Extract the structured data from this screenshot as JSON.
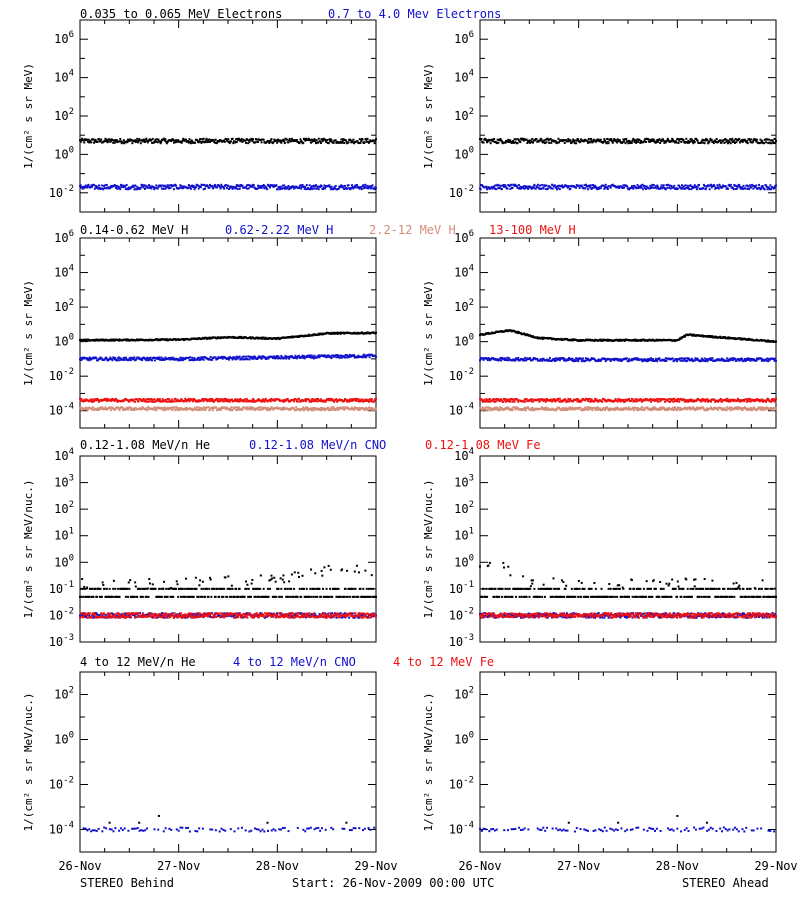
{
  "colors": {
    "black": "#000000",
    "blue": "#1111cc",
    "salmon": "#d28c78",
    "red": "#ee1111"
  },
  "rows": [
    {
      "id": "electrons",
      "ylabel": "1/(cm² s sr MeV)",
      "legend": [
        {
          "text": "0.035 to 0.065 MeV Electrons",
          "color": "black"
        },
        {
          "text": "0.7 to 4.0 Mev Electrons",
          "color": "blue"
        }
      ]
    },
    {
      "id": "protons",
      "ylabel": "1/(cm² s sr MeV)",
      "legend": [
        {
          "text": "0.14-0.62 MeV H",
          "color": "black"
        },
        {
          "text": "0.62-2.22 MeV H",
          "color": "blue"
        },
        {
          "text": "2.2-12 MeV H",
          "color": "salmon"
        },
        {
          "text": "13-100 MeV H",
          "color": "red"
        }
      ]
    },
    {
      "id": "heavy_low",
      "ylabel": "1/(cm² s sr MeV/nuc.)",
      "legend": [
        {
          "text": "0.12-1.08 MeV/n He",
          "color": "black"
        },
        {
          "text": "0.12-1.08 MeV/n CNO",
          "color": "blue"
        },
        {
          "text": "0.12-1.08 MeV Fe",
          "color": "red"
        }
      ]
    },
    {
      "id": "heavy_high",
      "ylabel": "1/(cm² s sr MeV/nuc.)",
      "legend": [
        {
          "text": "4 to 12 MeV/n He",
          "color": "black"
        },
        {
          "text": "4 to 12 MeV/n CNO",
          "color": "blue"
        },
        {
          "text": "4 to 12 MeV Fe",
          "color": "red"
        }
      ]
    }
  ],
  "x_ticks": [
    "26-Nov",
    "27-Nov",
    "28-Nov",
    "29-Nov"
  ],
  "footer": {
    "left": "STEREO Behind",
    "center": "Start: 26-Nov-2009 00:00 UTC",
    "right": "STEREO Ahead"
  },
  "chart_data": [
    {
      "type": "scatter",
      "spacecraft": "STEREO Behind",
      "row": "electrons",
      "log_y": true,
      "x_unit": "days since 26-Nov-2009 00:00 UTC",
      "xlim": [
        0,
        3
      ],
      "ylim_exp": [
        -3,
        7
      ],
      "y_ticks_exp": [
        -2,
        0,
        2,
        4,
        6
      ],
      "series": [
        {
          "name": "0.035 to 0.065 MeV Electrons",
          "color": "black",
          "y": [
            5,
            5,
            5,
            5
          ],
          "x": [
            0,
            1,
            2,
            3
          ]
        },
        {
          "name": "0.7 to 4.0 Mev Electrons",
          "color": "blue",
          "y": [
            0.02,
            0.02,
            0.02,
            0.02
          ],
          "x": [
            0,
            1,
            2,
            3
          ]
        }
      ]
    },
    {
      "type": "scatter",
      "spacecraft": "STEREO Ahead",
      "row": "electrons",
      "log_y": true,
      "x_unit": "days since 26-Nov-2009 00:00 UTC",
      "xlim": [
        0,
        3
      ],
      "ylim_exp": [
        -3,
        7
      ],
      "y_ticks_exp": [
        -2,
        0,
        2,
        4,
        6
      ],
      "series": [
        {
          "name": "0.035 to 0.065 MeV Electrons",
          "color": "black",
          "y": [
            5,
            5,
            5,
            5
          ],
          "x": [
            0,
            1,
            2,
            3
          ]
        },
        {
          "name": "0.7 to 4.0 Mev Electrons",
          "color": "blue",
          "y": [
            0.02,
            0.02,
            0.02,
            0.02
          ],
          "x": [
            0,
            1,
            2,
            3
          ]
        }
      ]
    },
    {
      "type": "scatter",
      "spacecraft": "STEREO Behind",
      "row": "protons",
      "log_y": true,
      "x_unit": "days since 26-Nov-2009 00:00 UTC",
      "xlim": [
        0,
        3
      ],
      "ylim_exp": [
        -5,
        6
      ],
      "y_ticks_exp": [
        -4,
        -2,
        0,
        2,
        4,
        6
      ],
      "series": [
        {
          "name": "0.14-0.62 MeV H",
          "color": "black",
          "x": [
            0,
            1,
            1.5,
            2,
            2.5,
            3
          ],
          "y": [
            1.2,
            1.3,
            1.8,
            1.5,
            3.0,
            3.2
          ]
        },
        {
          "name": "0.62-2.22 MeV H",
          "color": "blue",
          "x": [
            0,
            1,
            2,
            3
          ],
          "y": [
            0.1,
            0.1,
            0.12,
            0.15
          ]
        },
        {
          "name": "2.2-12 MeV H",
          "color": "salmon",
          "x": [
            0,
            1,
            2,
            3
          ],
          "y": [
            0.00013,
            0.00013,
            0.00013,
            0.00013
          ]
        },
        {
          "name": "13-100 MeV H",
          "color": "red",
          "x": [
            0,
            1,
            2,
            3
          ],
          "y": [
            0.0004,
            0.0004,
            0.0004,
            0.0004
          ]
        }
      ]
    },
    {
      "type": "scatter",
      "spacecraft": "STEREO Ahead",
      "row": "protons",
      "log_y": true,
      "x_unit": "days since 26-Nov-2009 00:00 UTC",
      "xlim": [
        0,
        3
      ],
      "ylim_exp": [
        -5,
        6
      ],
      "y_ticks_exp": [
        -4,
        -2,
        0,
        2,
        4,
        6
      ],
      "series": [
        {
          "name": "0.14-0.62 MeV H",
          "color": "black",
          "x": [
            0,
            0.3,
            0.6,
            1,
            2,
            2.1,
            3
          ],
          "y": [
            2.5,
            4.5,
            1.6,
            1.2,
            1.2,
            2.5,
            1.0
          ]
        },
        {
          "name": "0.62-2.22 MeV H",
          "color": "blue",
          "x": [
            0,
            1,
            2,
            3
          ],
          "y": [
            0.1,
            0.09,
            0.09,
            0.09
          ]
        },
        {
          "name": "2.2-12 MeV H",
          "color": "salmon",
          "x": [
            0,
            1,
            2,
            3
          ],
          "y": [
            0.00013,
            0.00013,
            0.00013,
            0.00013
          ]
        },
        {
          "name": "13-100 MeV H",
          "color": "red",
          "x": [
            0,
            1,
            2,
            3
          ],
          "y": [
            0.0004,
            0.0004,
            0.0004,
            0.0004
          ]
        }
      ]
    },
    {
      "type": "scatter",
      "spacecraft": "STEREO Behind",
      "row": "heavy_low",
      "log_y": true,
      "x_unit": "days since 26-Nov-2009 00:00 UTC",
      "xlim": [
        0,
        3
      ],
      "ylim_exp": [
        -3,
        4
      ],
      "y_ticks_exp": [
        -3,
        -2,
        -1,
        0,
        1,
        2,
        3,
        4
      ],
      "series": [
        {
          "name": "0.12-1.08 MeV/n He",
          "color": "black",
          "x": [
            0,
            1,
            2,
            2.5,
            3
          ],
          "y": [
            0.1,
            0.1,
            0.15,
            0.3,
            0.3
          ]
        },
        {
          "name": "0.12-1.08 MeV/n CNO",
          "color": "blue",
          "x": [
            0,
            1,
            2,
            3
          ],
          "y": [
            0.01,
            0.01,
            0.01,
            0.01
          ]
        },
        {
          "name": "0.12-1.08 MeV Fe",
          "color": "red",
          "x": [
            0,
            1,
            2,
            3
          ],
          "y": [
            0.01,
            0.01,
            0.01,
            0.01
          ]
        }
      ]
    },
    {
      "type": "scatter",
      "spacecraft": "STEREO Ahead",
      "row": "heavy_low",
      "log_y": true,
      "x_unit": "days since 26-Nov-2009 00:00 UTC",
      "xlim": [
        0,
        3
      ],
      "ylim_exp": [
        -3,
        4
      ],
      "y_ticks_exp": [
        -3,
        -2,
        -1,
        0,
        1,
        2,
        3,
        4
      ],
      "series": [
        {
          "name": "0.12-1.08 MeV/n He",
          "color": "black",
          "x": [
            0,
            0.2,
            0.5,
            1,
            2,
            3
          ],
          "y": [
            0.3,
            0.5,
            0.1,
            0.1,
            0.1,
            0.1
          ]
        },
        {
          "name": "0.12-1.08 MeV/n CNO",
          "color": "blue",
          "x": [
            0,
            1,
            2,
            3
          ],
          "y": [
            0.01,
            0.01,
            0.01,
            0.01
          ]
        },
        {
          "name": "0.12-1.08 MeV Fe",
          "color": "red",
          "x": [
            0,
            1,
            2,
            3
          ],
          "y": [
            0.01,
            0.01,
            0.01,
            0.01
          ]
        }
      ]
    },
    {
      "type": "scatter",
      "spacecraft": "STEREO Behind",
      "row": "heavy_high",
      "log_y": true,
      "x_unit": "days since 26-Nov-2009 00:00 UTC",
      "xlim": [
        0,
        3
      ],
      "ylim_exp": [
        -5,
        3
      ],
      "y_ticks_exp": [
        -4,
        -2,
        0,
        2
      ],
      "series": [
        {
          "name": "4 to 12 MeV/n He",
          "color": "black",
          "x": [
            0.3,
            0.6,
            0.8,
            1.9,
            2.7
          ],
          "y": [
            0.0002,
            0.0002,
            0.0004,
            0.0002,
            0.0002
          ]
        },
        {
          "name": "4 to 12 MeV/n CNO",
          "color": "blue",
          "x": [
            0,
            1,
            2,
            3
          ],
          "y": [
            0.0001,
            0.0001,
            0.0001,
            0.0001
          ]
        },
        {
          "name": "4 to 12 MeV Fe",
          "color": "red",
          "x": [],
          "y": []
        }
      ]
    },
    {
      "type": "scatter",
      "spacecraft": "STEREO Ahead",
      "row": "heavy_high",
      "log_y": true,
      "x_unit": "days since 26-Nov-2009 00:00 UTC",
      "xlim": [
        0,
        3
      ],
      "ylim_exp": [
        -5,
        3
      ],
      "y_ticks_exp": [
        -4,
        -2,
        0,
        2
      ],
      "series": [
        {
          "name": "4 to 12 MeV/n He",
          "color": "black",
          "x": [
            0.9,
            1.4,
            2.0,
            2.3
          ],
          "y": [
            0.0002,
            0.0002,
            0.0004,
            0.0002
          ]
        },
        {
          "name": "4 to 12 MeV/n CNO",
          "color": "blue",
          "x": [
            0,
            1,
            2,
            3
          ],
          "y": [
            0.0001,
            0.0001,
            0.0001,
            0.0001
          ]
        },
        {
          "name": "4 to 12 MeV Fe",
          "color": "red",
          "x": [],
          "y": []
        }
      ]
    }
  ]
}
